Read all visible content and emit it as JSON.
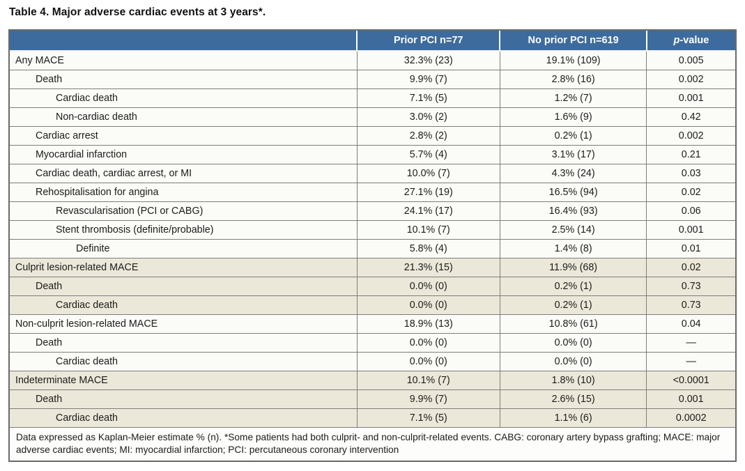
{
  "title": "Table 4. Major adverse cardiac events at 3 years*.",
  "colors": {
    "header_bg": "#3d6b9e",
    "header_text": "#ffffff",
    "shaded_row_bg": "#ece8d9",
    "row_bg": "#fbfbf7",
    "border": "#7d7d7d"
  },
  "table": {
    "header": {
      "col_label": "",
      "col_prior": "Prior PCI n=77",
      "col_no_prior": "No prior PCI n=619",
      "p_italic": "p",
      "p_rest": "-value"
    },
    "rows": [
      {
        "label": "Any MACE",
        "indent": 0,
        "prior": "32.3% (23)",
        "no_prior": "19.1% (109)",
        "p": "0.005",
        "shaded": false
      },
      {
        "label": "Death",
        "indent": 1,
        "prior": "9.9% (7)",
        "no_prior": "2.8% (16)",
        "p": "0.002",
        "shaded": false
      },
      {
        "label": "Cardiac death",
        "indent": 2,
        "prior": "7.1% (5)",
        "no_prior": "1.2% (7)",
        "p": "0.001",
        "shaded": false
      },
      {
        "label": "Non-cardiac death",
        "indent": 2,
        "prior": "3.0% (2)",
        "no_prior": "1.6% (9)",
        "p": "0.42",
        "shaded": false
      },
      {
        "label": "Cardiac arrest",
        "indent": 1,
        "prior": "2.8% (2)",
        "no_prior": "0.2% (1)",
        "p": "0.002",
        "shaded": false
      },
      {
        "label": "Myocardial infarction",
        "indent": 1,
        "prior": "5.7% (4)",
        "no_prior": "3.1% (17)",
        "p": "0.21",
        "shaded": false
      },
      {
        "label": "Cardiac death, cardiac arrest, or MI",
        "indent": 1,
        "prior": "10.0% (7)",
        "no_prior": "4.3% (24)",
        "p": "0.03",
        "shaded": false
      },
      {
        "label": "Rehospitalisation for angina",
        "indent": 1,
        "prior": "27.1% (19)",
        "no_prior": "16.5% (94)",
        "p": "0.02",
        "shaded": false
      },
      {
        "label": "Revascularisation (PCI or CABG)",
        "indent": 2,
        "prior": "24.1% (17)",
        "no_prior": "16.4% (93)",
        "p": "0.06",
        "shaded": false
      },
      {
        "label": "Stent thrombosis (definite/probable)",
        "indent": 2,
        "prior": "10.1% (7)",
        "no_prior": "2.5% (14)",
        "p": "0.001",
        "shaded": false
      },
      {
        "label": "Definite",
        "indent": 3,
        "prior": "5.8% (4)",
        "no_prior": "1.4% (8)",
        "p": "0.01",
        "shaded": false
      },
      {
        "label": "Culprit lesion-related MACE",
        "indent": 0,
        "prior": "21.3% (15)",
        "no_prior": "11.9% (68)",
        "p": "0.02",
        "shaded": true
      },
      {
        "label": "Death",
        "indent": 1,
        "prior": "0.0% (0)",
        "no_prior": "0.2% (1)",
        "p": "0.73",
        "shaded": true
      },
      {
        "label": "Cardiac death",
        "indent": 2,
        "prior": "0.0% (0)",
        "no_prior": "0.2% (1)",
        "p": "0.73",
        "shaded": true
      },
      {
        "label": "Non-culprit lesion-related MACE",
        "indent": 0,
        "prior": "18.9% (13)",
        "no_prior": "10.8% (61)",
        "p": "0.04",
        "shaded": false
      },
      {
        "label": "Death",
        "indent": 1,
        "prior": "0.0% (0)",
        "no_prior": "0.0% (0)",
        "p": "—",
        "shaded": false
      },
      {
        "label": "Cardiac death",
        "indent": 2,
        "prior": "0.0% (0)",
        "no_prior": "0.0% (0)",
        "p": "—",
        "shaded": false
      },
      {
        "label": "Indeterminate MACE",
        "indent": 0,
        "prior": "10.1% (7)",
        "no_prior": "1.8% (10)",
        "p": "<0.0001",
        "shaded": true
      },
      {
        "label": "Death",
        "indent": 1,
        "prior": "9.9% (7)",
        "no_prior": "2.6% (15)",
        "p": "0.001",
        "shaded": true
      },
      {
        "label": "Cardiac death",
        "indent": 2,
        "prior": "7.1% (5)",
        "no_prior": "1.1% (6)",
        "p": "0.0002",
        "shaded": true
      }
    ],
    "footnote": "Data expressed as Kaplan-Meier estimate % (n). *Some patients had both culprit- and non-culprit-related events. CABG: coronary artery bypass grafting; MACE: major adverse cardiac events; MI: myocardial infarction; PCI: percutaneous coronary intervention"
  }
}
